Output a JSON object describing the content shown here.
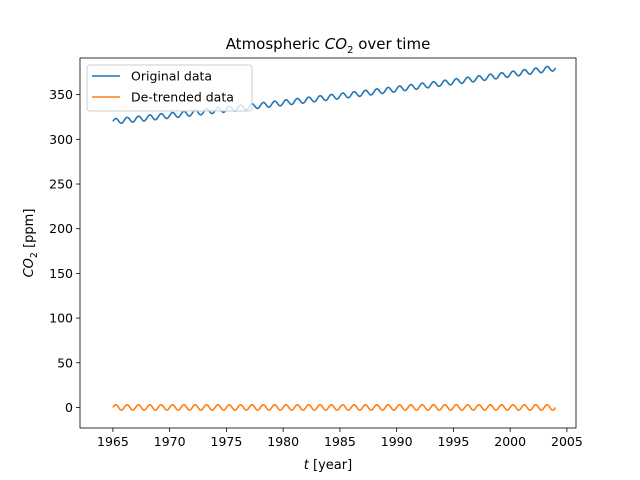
{
  "chart_data": {
    "type": "line",
    "title": {
      "prefix": "Atmospheric ",
      "var": "CO",
      "sub": "2",
      "suffix": " over time"
    },
    "xlabel": {
      "var": "t",
      "rest": " [year]"
    },
    "ylabel": {
      "var": "CO",
      "sub": "2",
      "rest": " [ppm]"
    },
    "xlim": [
      1962.1,
      2005.8
    ],
    "ylim": [
      -23,
      391
    ],
    "xticks": [
      1965,
      1970,
      1975,
      1980,
      1985,
      1990,
      1995,
      2000,
      2005
    ],
    "yticks": [
      0,
      50,
      100,
      150,
      200,
      250,
      300,
      350
    ],
    "x_range": [
      1965.0,
      2004.0
    ],
    "grid": false,
    "legend_position": "upper-left",
    "series": [
      {
        "name": "Original data",
        "color": "#1f77b4",
        "model": "trend plus seasonal cycle",
        "trend": {
          "start": 320.0,
          "slope": 1.3,
          "curve": 0.006,
          "x0": 1965
        },
        "seasonal_amplitude": 3.0,
        "period": 1.0
      },
      {
        "name": "De-trended data",
        "color": "#ff7f0e",
        "model": "seasonal cycle about zero",
        "trend": {
          "start": 0.0,
          "slope": 0.0,
          "curve": 0.0,
          "x0": 1965
        },
        "seasonal_amplitude": 3.0,
        "period": 1.0
      }
    ]
  }
}
